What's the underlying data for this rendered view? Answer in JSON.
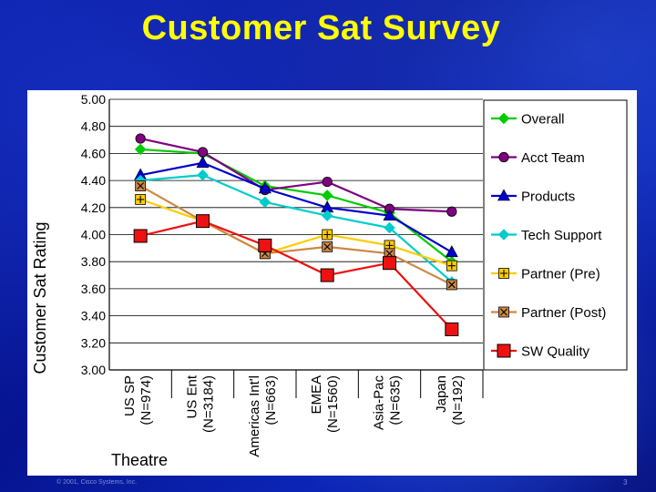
{
  "slide": {
    "title": "Customer Sat Survey",
    "footer": "© 2001, Cisco Systems, Inc.",
    "page_number": "3"
  },
  "colors": {
    "title": "#ffff00",
    "background": "#0a1fa8"
  },
  "chart_data": {
    "type": "line",
    "ylabel": "Customer Sat Rating",
    "xlabel": "Theatre",
    "ylim": [
      3.0,
      5.0
    ],
    "yticks": [
      "3.00",
      "3.20",
      "3.40",
      "3.60",
      "3.80",
      "4.00",
      "4.20",
      "4.40",
      "4.60",
      "4.80",
      "5.00"
    ],
    "grid": true,
    "legend_position": "right",
    "categories": [
      {
        "line1": "US SP",
        "line2": "(N=974)"
      },
      {
        "line1": "US Ent",
        "line2": "(N=3184)"
      },
      {
        "line1": "Americas Int'l",
        "line2": "(N=663)"
      },
      {
        "line1": "EMEA",
        "line2": "(N=1560)"
      },
      {
        "line1": "Asia-Pac",
        "line2": "(N=635)"
      },
      {
        "line1": "Japan",
        "line2": "(N=192)"
      }
    ],
    "series": [
      {
        "name": "Overall",
        "color": "#00cc00",
        "marker": "diamond",
        "values": [
          4.63,
          4.6,
          4.36,
          4.29,
          4.16,
          3.8
        ]
      },
      {
        "name": "Acct Team",
        "color": "#800080",
        "marker": "circle",
        "values": [
          4.71,
          4.61,
          4.33,
          4.39,
          4.19,
          4.17
        ]
      },
      {
        "name": "Products",
        "color": "#0000cc",
        "marker": "triangle",
        "values": [
          4.44,
          4.53,
          4.34,
          4.2,
          4.14,
          3.87
        ]
      },
      {
        "name": "Tech Support",
        "color": "#00cccc",
        "marker": "diamond",
        "values": [
          4.4,
          4.44,
          4.24,
          4.14,
          4.05,
          3.65
        ]
      },
      {
        "name": "Partner (Pre)",
        "color": "#ffcc00",
        "marker": "plus",
        "values": [
          4.26,
          4.1,
          3.86,
          4.0,
          3.92,
          3.77
        ]
      },
      {
        "name": "Partner (Post)",
        "color": "#cc8844",
        "marker": "x",
        "values": [
          4.36,
          4.1,
          3.86,
          3.91,
          3.86,
          3.63
        ]
      },
      {
        "name": "SW Quality",
        "color": "#ee1111",
        "marker": "square",
        "values": [
          3.99,
          4.1,
          3.92,
          3.7,
          3.79,
          3.3
        ]
      }
    ]
  }
}
